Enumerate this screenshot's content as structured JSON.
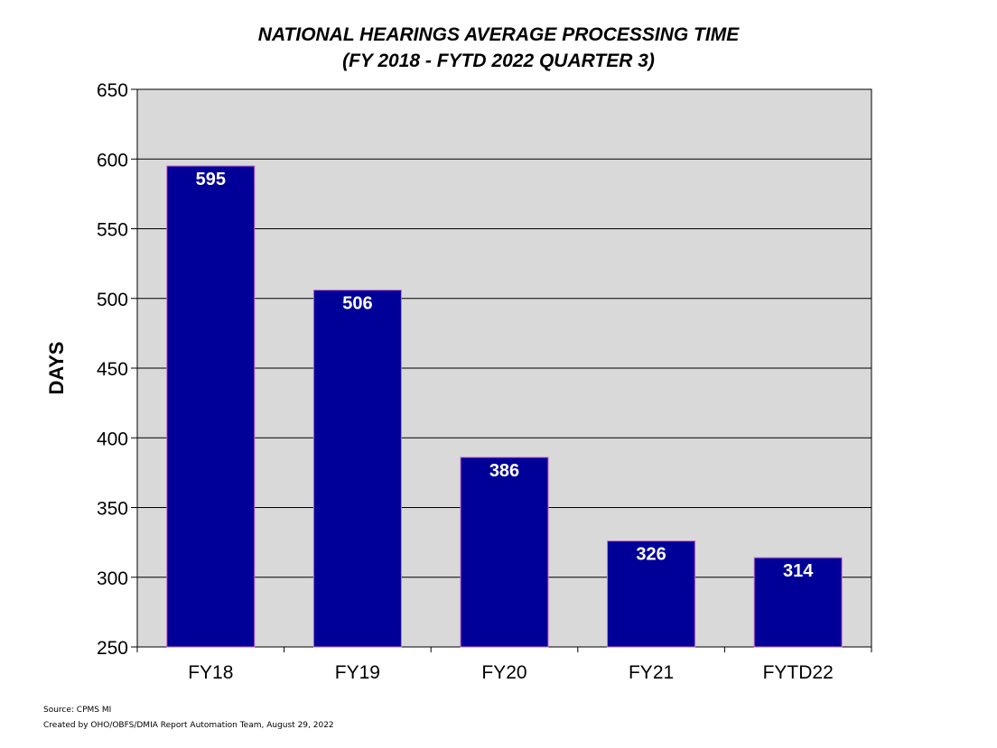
{
  "chart_data": {
    "type": "bar",
    "title": "NATIONAL HEARINGS AVERAGE PROCESSING TIME",
    "subtitle": "(FY 2018 - FYTD 2022 QUARTER 3)",
    "xlabel": "",
    "ylabel": "DAYS",
    "categories": [
      "FY18",
      "FY19",
      "FY20",
      "FY21",
      "FYTD22"
    ],
    "values": [
      595,
      506,
      386,
      326,
      314
    ],
    "data_labels": [
      "595",
      "506",
      "386",
      "326",
      "314"
    ],
    "ylim": [
      250,
      650
    ],
    "yticks": [
      250,
      300,
      350,
      400,
      450,
      500,
      550,
      600,
      650
    ],
    "grid": true,
    "legend": "none",
    "colors": {
      "bar": "#000099",
      "bar_edge": "#cc66cc",
      "plot_bg": "#d9d9d9",
      "grid": "#000000"
    }
  },
  "footer": {
    "source": "Source: CPMS MI",
    "created": "Created by OHO/OBFS/DMIA Report Automation Team, August 29, 2022"
  }
}
